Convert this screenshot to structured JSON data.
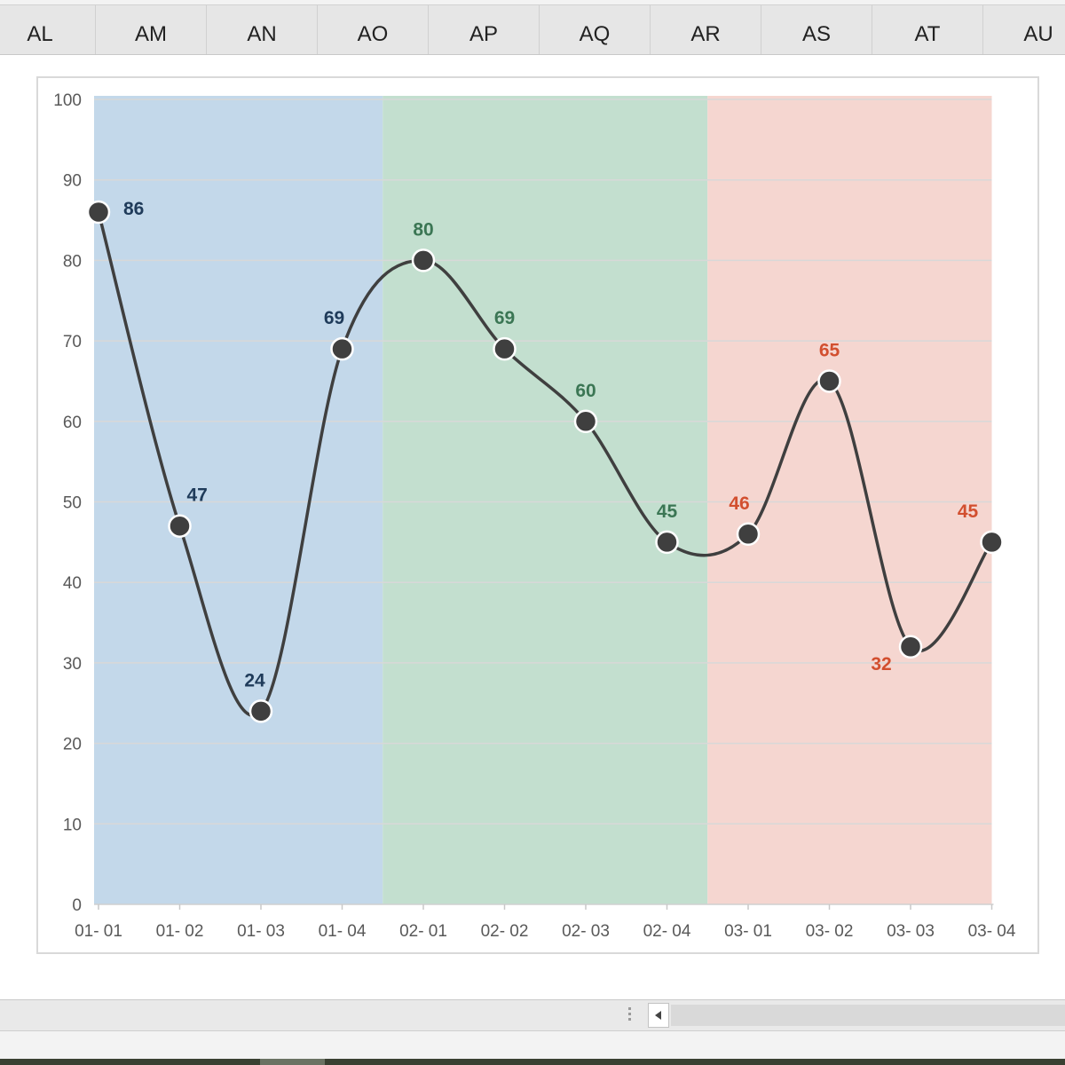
{
  "column_headers": [
    "AL",
    "AM",
    "AN",
    "AO",
    "AP",
    "AQ",
    "AR",
    "AS",
    "AT",
    "AU"
  ],
  "chart_data": {
    "type": "line",
    "title": "",
    "xlabel": "",
    "ylabel": "",
    "categories": [
      "01- 01",
      "01- 02",
      "01- 03",
      "01- 04",
      "02- 01",
      "02- 02",
      "02- 03",
      "02- 04",
      "03- 01",
      "03- 02",
      "03- 03",
      "03- 04"
    ],
    "values": [
      86,
      47,
      24,
      69,
      80,
      69,
      60,
      45,
      46,
      65,
      32,
      45
    ],
    "data_labels": [
      "86",
      "47",
      "24",
      "69",
      "80",
      "69",
      "60",
      "45",
      "46",
      "65",
      "32",
      "45"
    ],
    "ylim": [
      0,
      100
    ],
    "yticks": [
      0,
      10,
      20,
      30,
      40,
      50,
      60,
      70,
      80,
      90,
      100
    ],
    "ytick_labels": [
      "0",
      "10",
      "20",
      "30",
      "40",
      "50",
      "60",
      "70",
      "80",
      "90",
      "100"
    ],
    "grid": true,
    "smooth": true,
    "line_color": "#3f3f3f",
    "marker_color": "#3f3f3f",
    "bands": [
      {
        "from_index": 0,
        "to_index": 3,
        "color": "#c3d8ea",
        "label_color": "#1f3b5a"
      },
      {
        "from_index": 4,
        "to_index": 7,
        "color": "#c3dfcf",
        "label_color": "#3b7654"
      },
      {
        "from_index": 8,
        "to_index": 11,
        "color": "#f5d6d0",
        "label_color": "#d24f2f"
      }
    ],
    "label_positions": [
      "right",
      "right",
      "top",
      "top",
      "top",
      "top",
      "top",
      "top",
      "top-left",
      "top",
      "bottom-left",
      "top-left"
    ]
  }
}
